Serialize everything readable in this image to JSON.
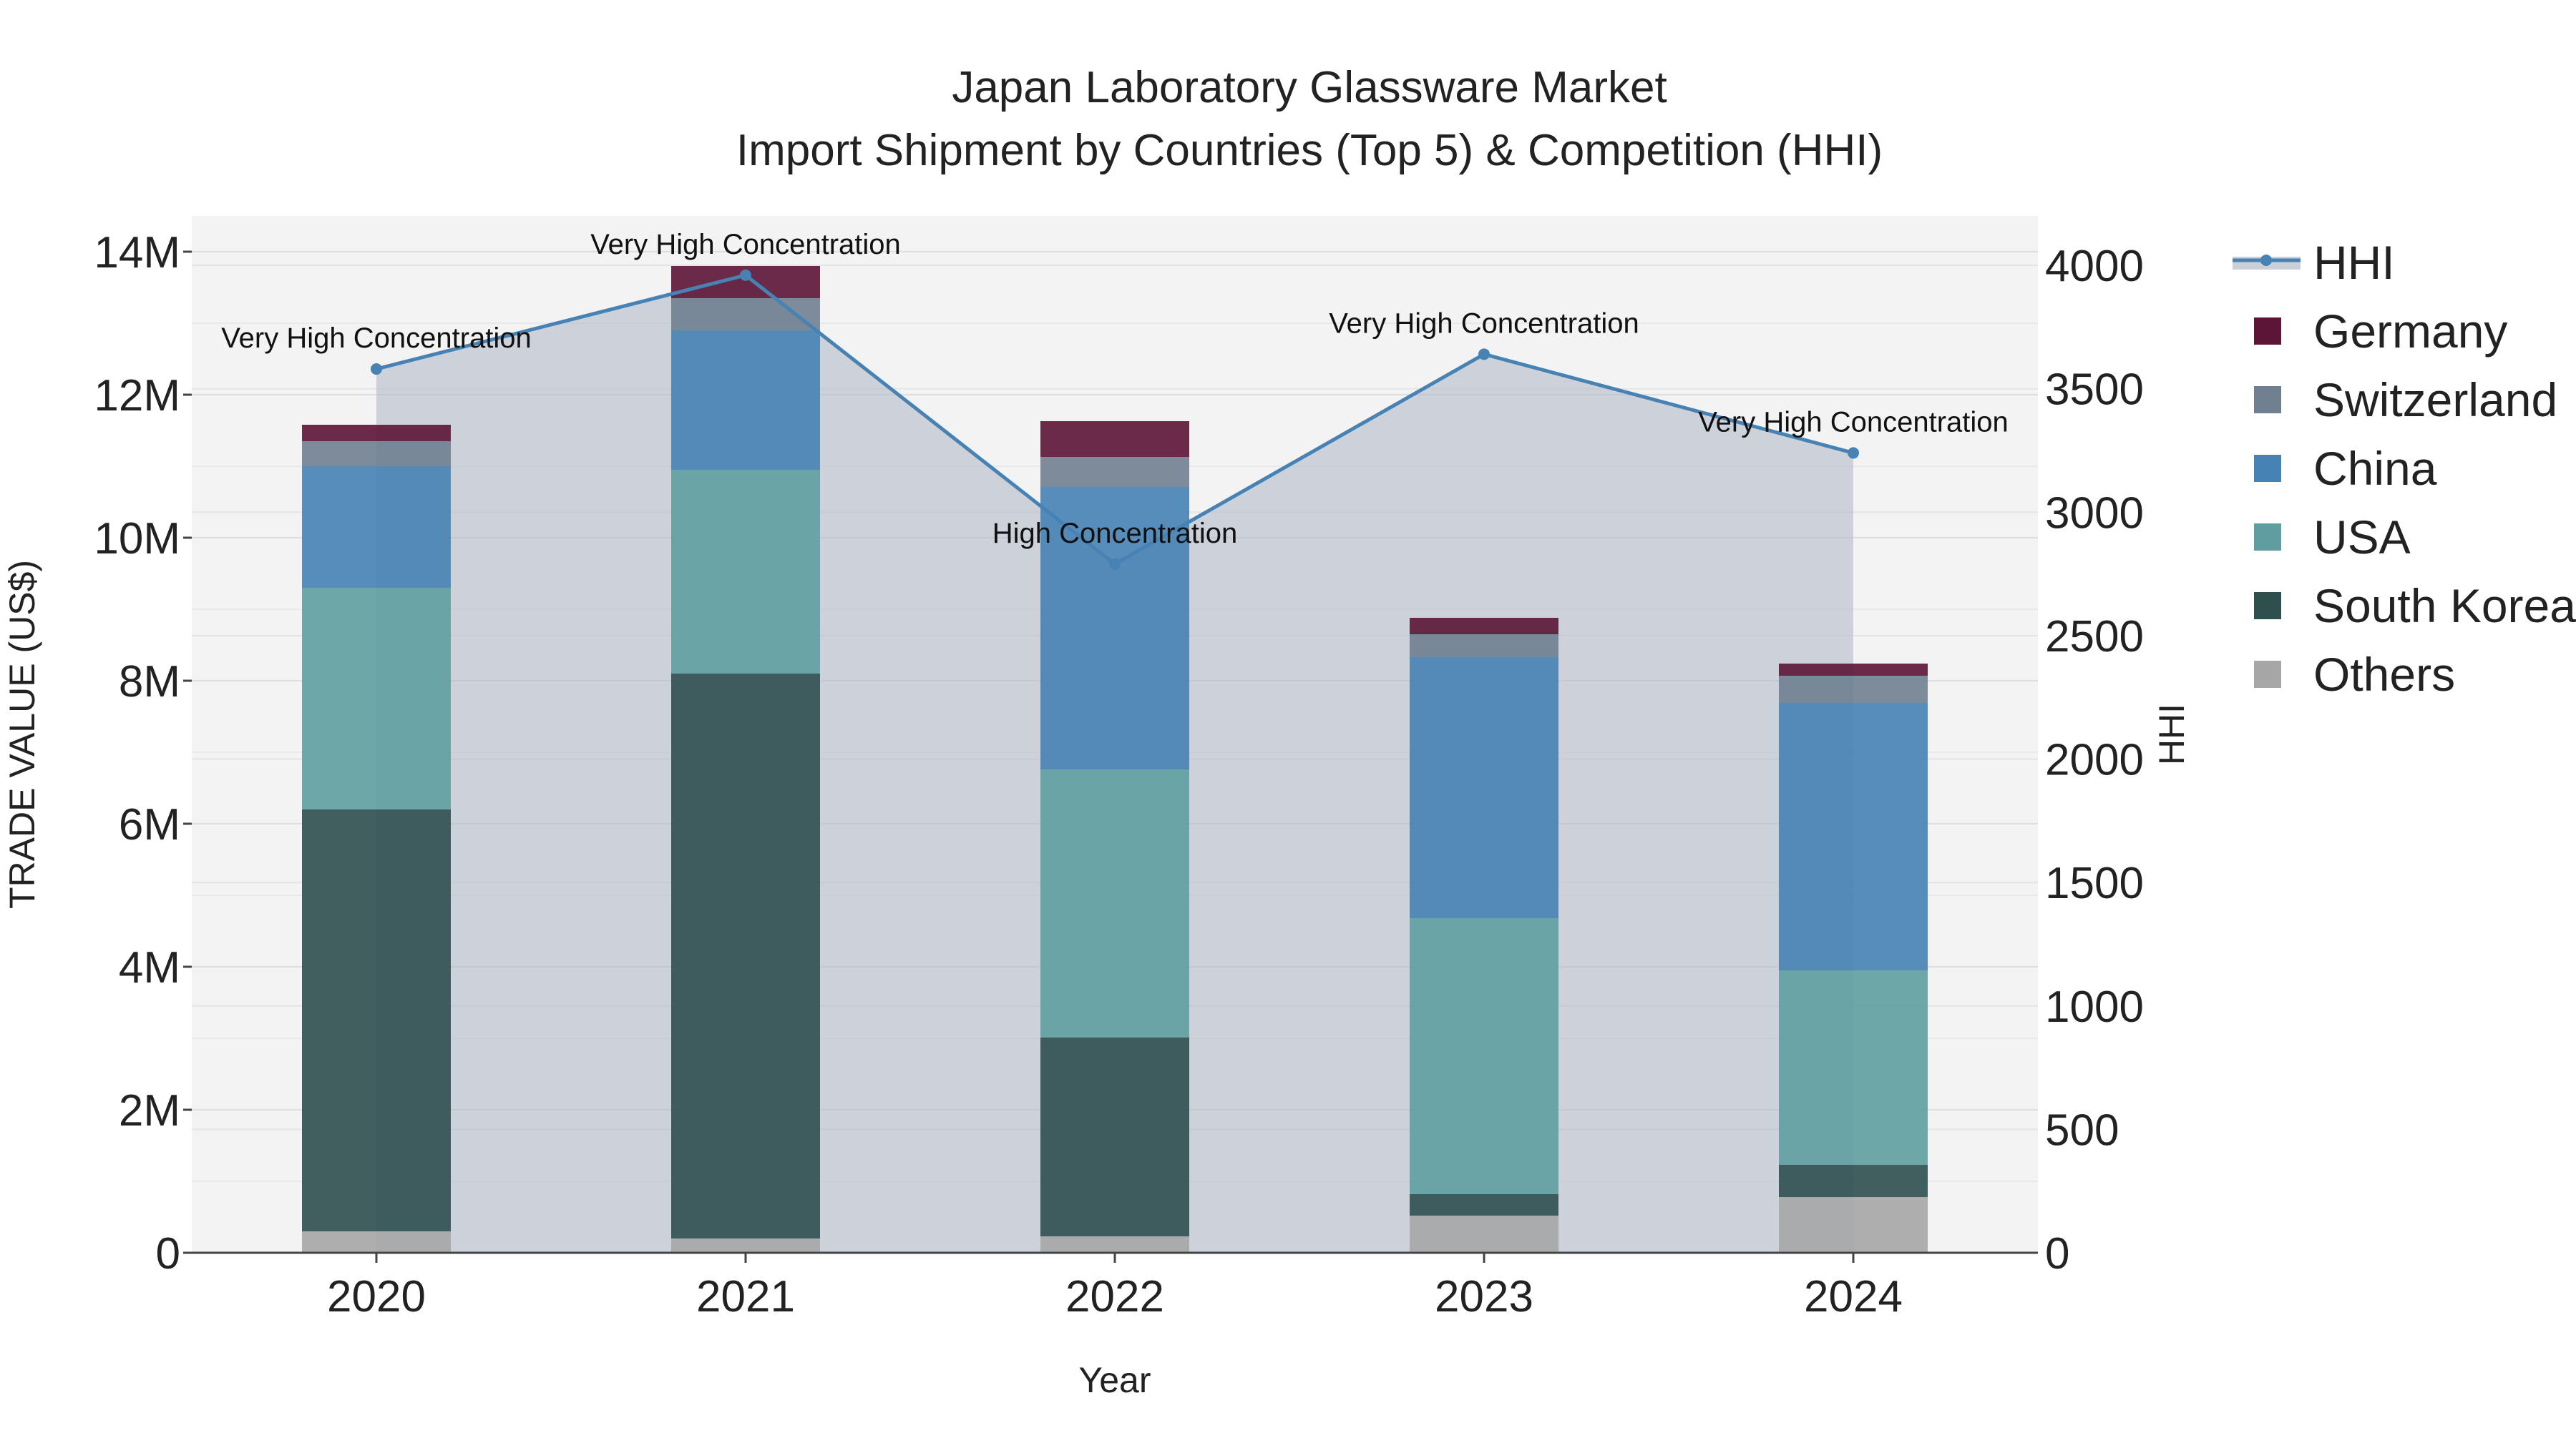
{
  "chart_data": {
    "type": "bar",
    "stacked": true,
    "title_line1": "Japan Laboratory Glassware Market",
    "title_line2": "Import Shipment by Countries (Top 5) & Competition (HHI)",
    "xlabel": "Year",
    "ylabel": "TRADE VALUE (US$)",
    "y2label": "HHI",
    "categories": [
      "2020",
      "2021",
      "2022",
      "2023",
      "2024"
    ],
    "ylim": [
      0,
      14500000
    ],
    "y_ticks": [
      0,
      2000000,
      4000000,
      6000000,
      8000000,
      10000000,
      12000000,
      14000000
    ],
    "y_tick_labels": [
      "0",
      "2M",
      "4M",
      "6M",
      "8M",
      "10M",
      "12M",
      "14M"
    ],
    "y2lim": [
      0,
      4200
    ],
    "y2_ticks": [
      0,
      500,
      1000,
      1500,
      2000,
      2500,
      3000,
      3500,
      4000
    ],
    "y2_tick_labels": [
      "0",
      "500",
      "1000",
      "1500",
      "2000",
      "2500",
      "3000",
      "3500",
      "4000"
    ],
    "series": [
      {
        "name": "Others",
        "color": "#a6a6a6",
        "values": [
          300000,
          200000,
          230000,
          520000,
          780000
        ]
      },
      {
        "name": "South Korea",
        "color": "#2f4f4f",
        "values": [
          5900000,
          7900000,
          2780000,
          300000,
          450000
        ]
      },
      {
        "name": "USA",
        "color": "#5f9ea0",
        "values": [
          3100000,
          2850000,
          3750000,
          3860000,
          2720000
        ]
      },
      {
        "name": "China",
        "color": "#4682b4",
        "values": [
          1700000,
          1950000,
          3950000,
          3650000,
          3740000
        ]
      },
      {
        "name": "Switzerland",
        "color": "#708090",
        "values": [
          350000,
          450000,
          420000,
          320000,
          380000
        ]
      },
      {
        "name": "Germany",
        "color": "#5c1535",
        "values": [
          230000,
          450000,
          500000,
          230000,
          170000
        ]
      }
    ],
    "hhi": {
      "name": "HHI",
      "color": "#4682b4",
      "values": [
        3580,
        3960,
        2790,
        3640,
        3240
      ],
      "labels": [
        "Very High Concentration",
        "Very High Concentration",
        "High Concentration",
        "Very High Concentration",
        "Very High Concentration"
      ]
    },
    "legend": [
      "HHI",
      "Germany",
      "Switzerland",
      "China",
      "USA",
      "South Korea",
      "Others"
    ]
  }
}
